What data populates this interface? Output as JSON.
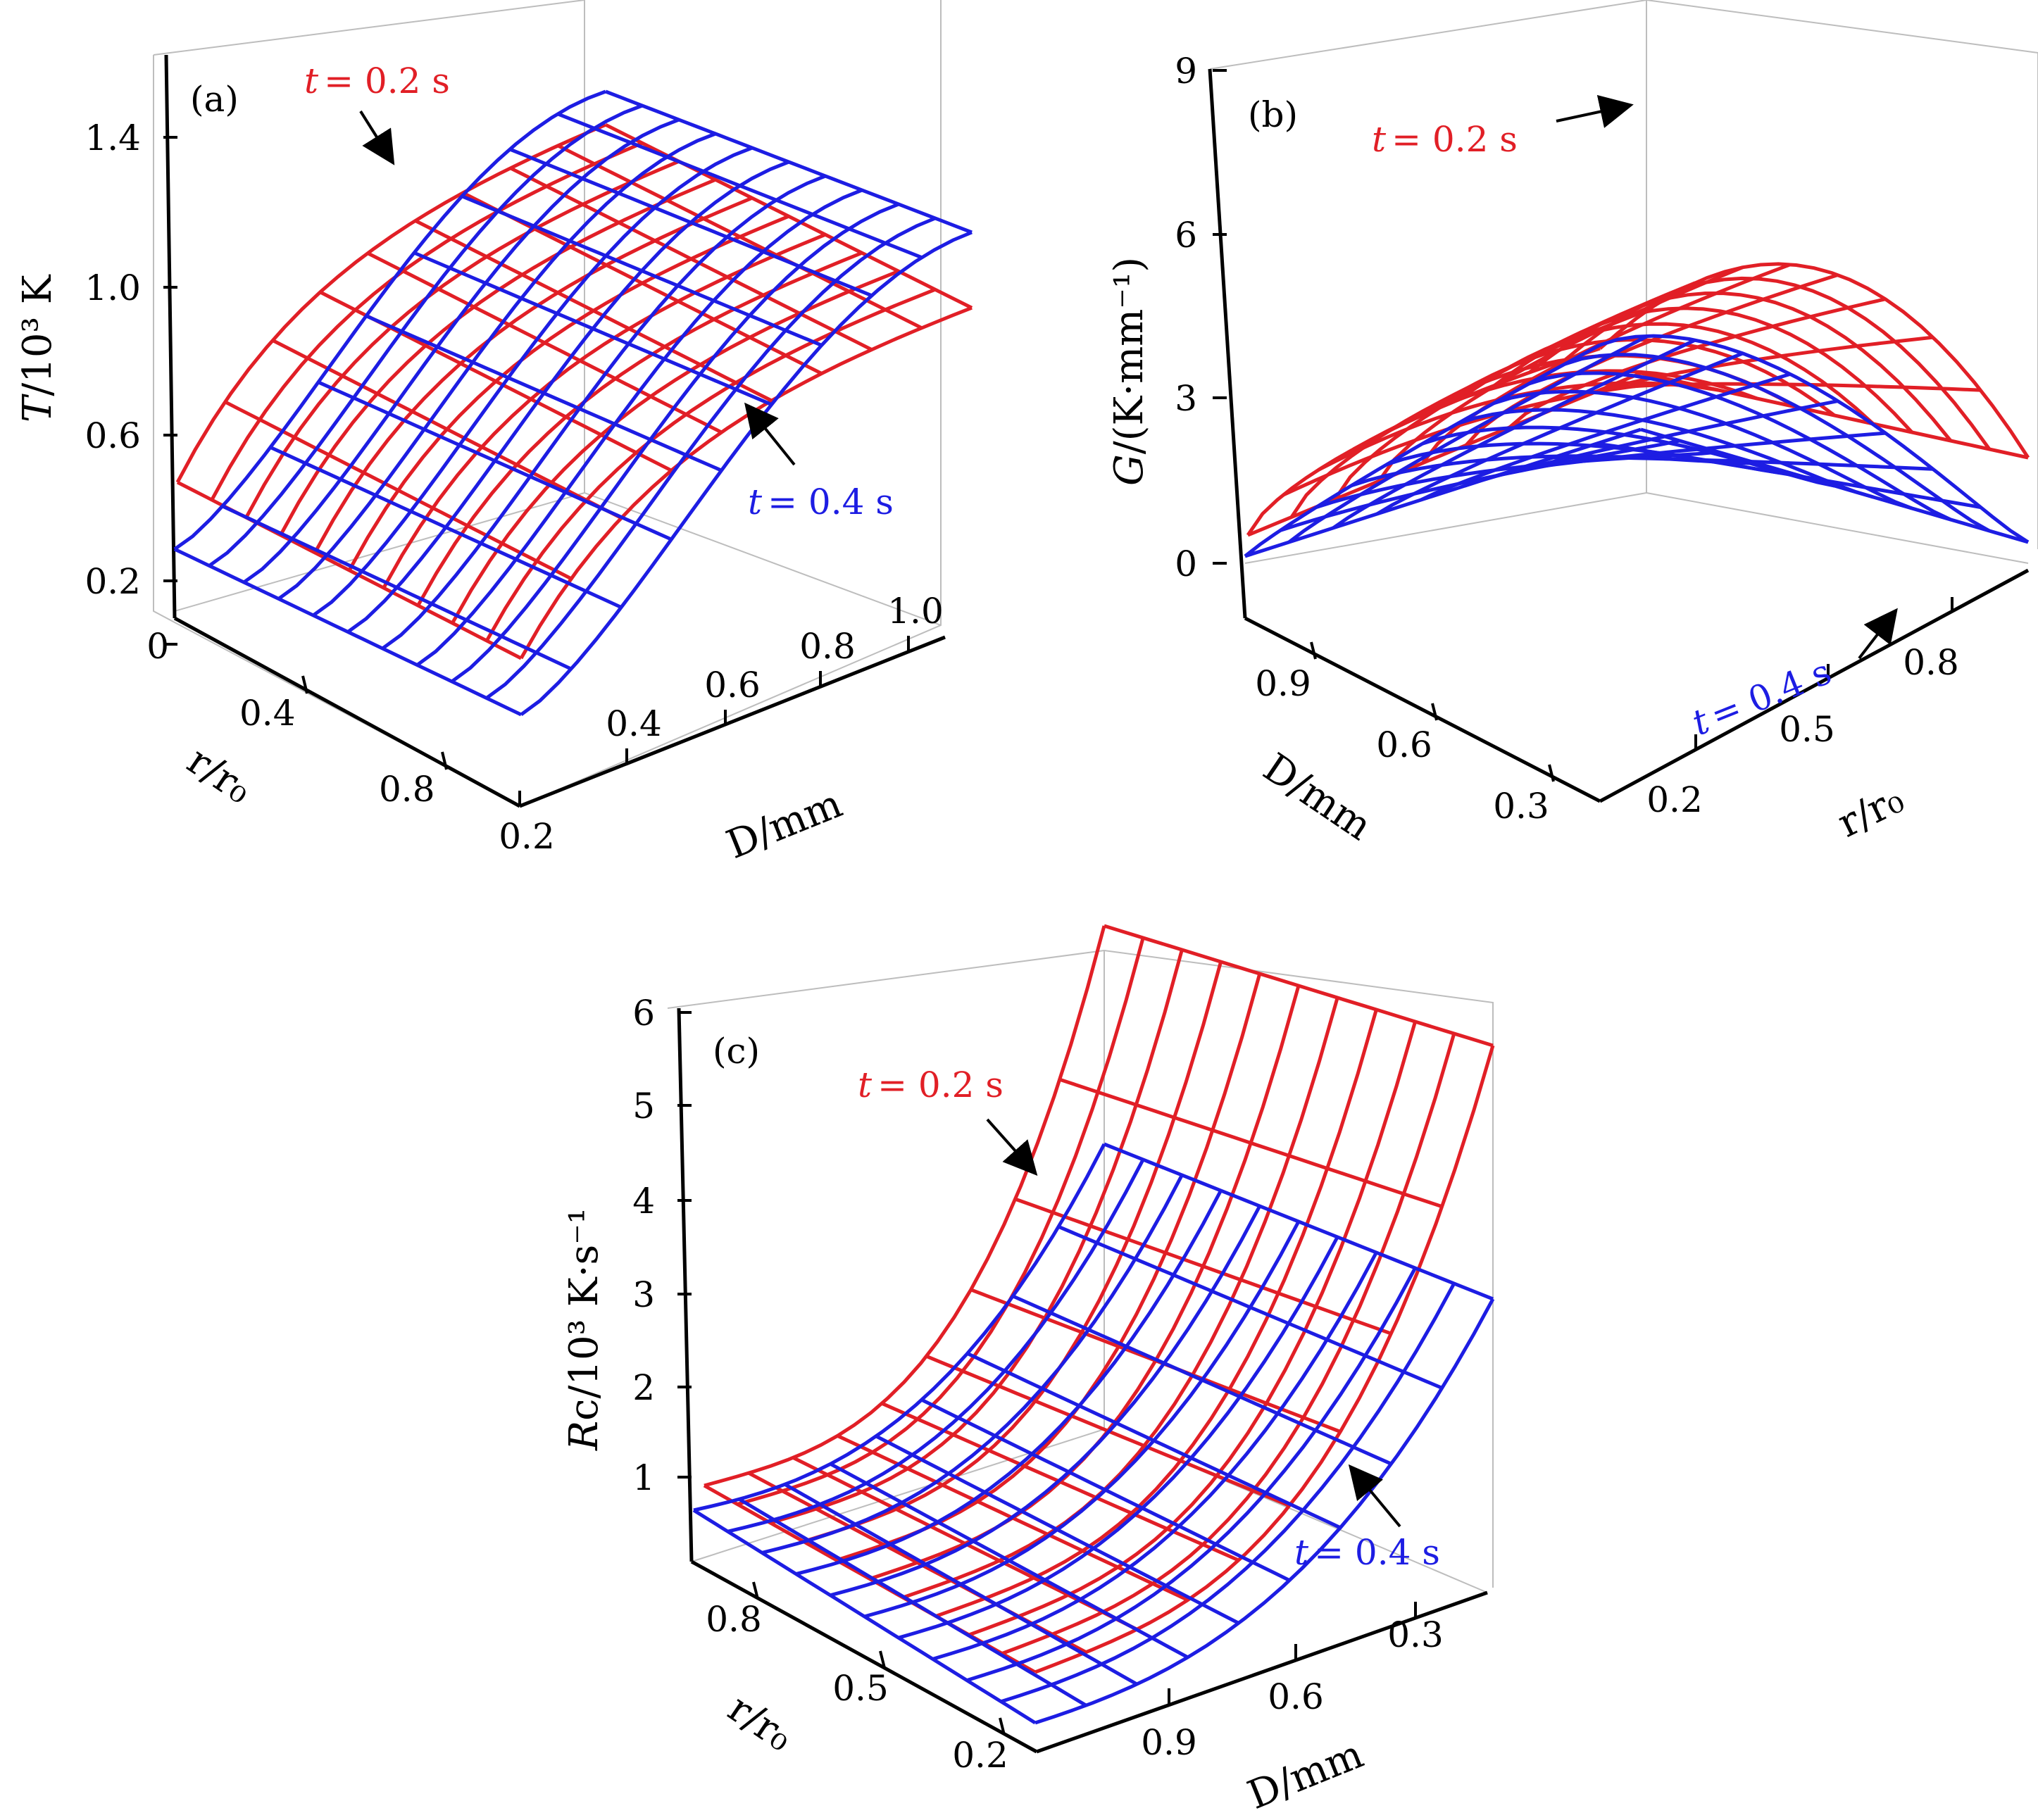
{
  "colors": {
    "t02": "#e11f26",
    "t04": "#1d1de3",
    "axis": "#000000",
    "box": "#bdbdbd"
  },
  "chart_data": [
    {
      "panel": "(a)",
      "type": "surface",
      "zlabel": {
        "sym": "T",
        "unit": "/10³ K"
      },
      "xlabel": "r/r₀",
      "ylabel": "D/mm",
      "z_ticks": [
        "0",
        "0.2",
        "0.6",
        "1.0",
        "1.4"
      ],
      "x_ticks": [
        "0.4",
        "0.8"
      ],
      "y_ticks": [
        "0.2",
        "0.4",
        "0.6",
        "0.8",
        "1.0"
      ],
      "series": [
        {
          "name": "t = 0.2 s",
          "label_sym": "t",
          "label_val": "= 0.2 s"
        },
        {
          "name": "t = 0.4 s",
          "label_sym": "t",
          "label_val": "= 0.4 s"
        }
      ]
    },
    {
      "panel": "(b)",
      "type": "surface",
      "zlabel": {
        "sym": "G",
        "unit": "/(K·mm⁻¹)"
      },
      "xlabel": "D/mm",
      "ylabel": "r/r₀",
      "z_ticks": [
        "0",
        "3",
        "6",
        "9"
      ],
      "x_ticks": [
        "0.9",
        "0.6",
        "0.3"
      ],
      "y_ticks": [
        "0.2",
        "0.5",
        "0.8"
      ],
      "series": [
        {
          "name": "t = 0.2 s",
          "label_sym": "t",
          "label_val": "= 0.2 s"
        },
        {
          "name": "t = 0.4 s",
          "label_sym": "t",
          "label_val": "= 0.4 s"
        }
      ]
    },
    {
      "panel": "(c)",
      "type": "surface",
      "zlabel": {
        "sym": "R",
        "unit": "c/10³ K·s⁻¹"
      },
      "xlabel": "r/r₀",
      "ylabel": "D/mm",
      "z_ticks": [
        "1",
        "2",
        "3",
        "4",
        "5",
        "6"
      ],
      "x_ticks": [
        "0.8",
        "0.5",
        "0.2"
      ],
      "y_ticks": [
        "0.9",
        "0.6",
        "0.3"
      ],
      "series": [
        {
          "name": "t = 0.2 s",
          "label_sym": "t",
          "label_val": "= 0.2 s"
        },
        {
          "name": "t = 0.4 s",
          "label_sym": "t",
          "label_val": "= 0.4 s"
        }
      ]
    }
  ]
}
